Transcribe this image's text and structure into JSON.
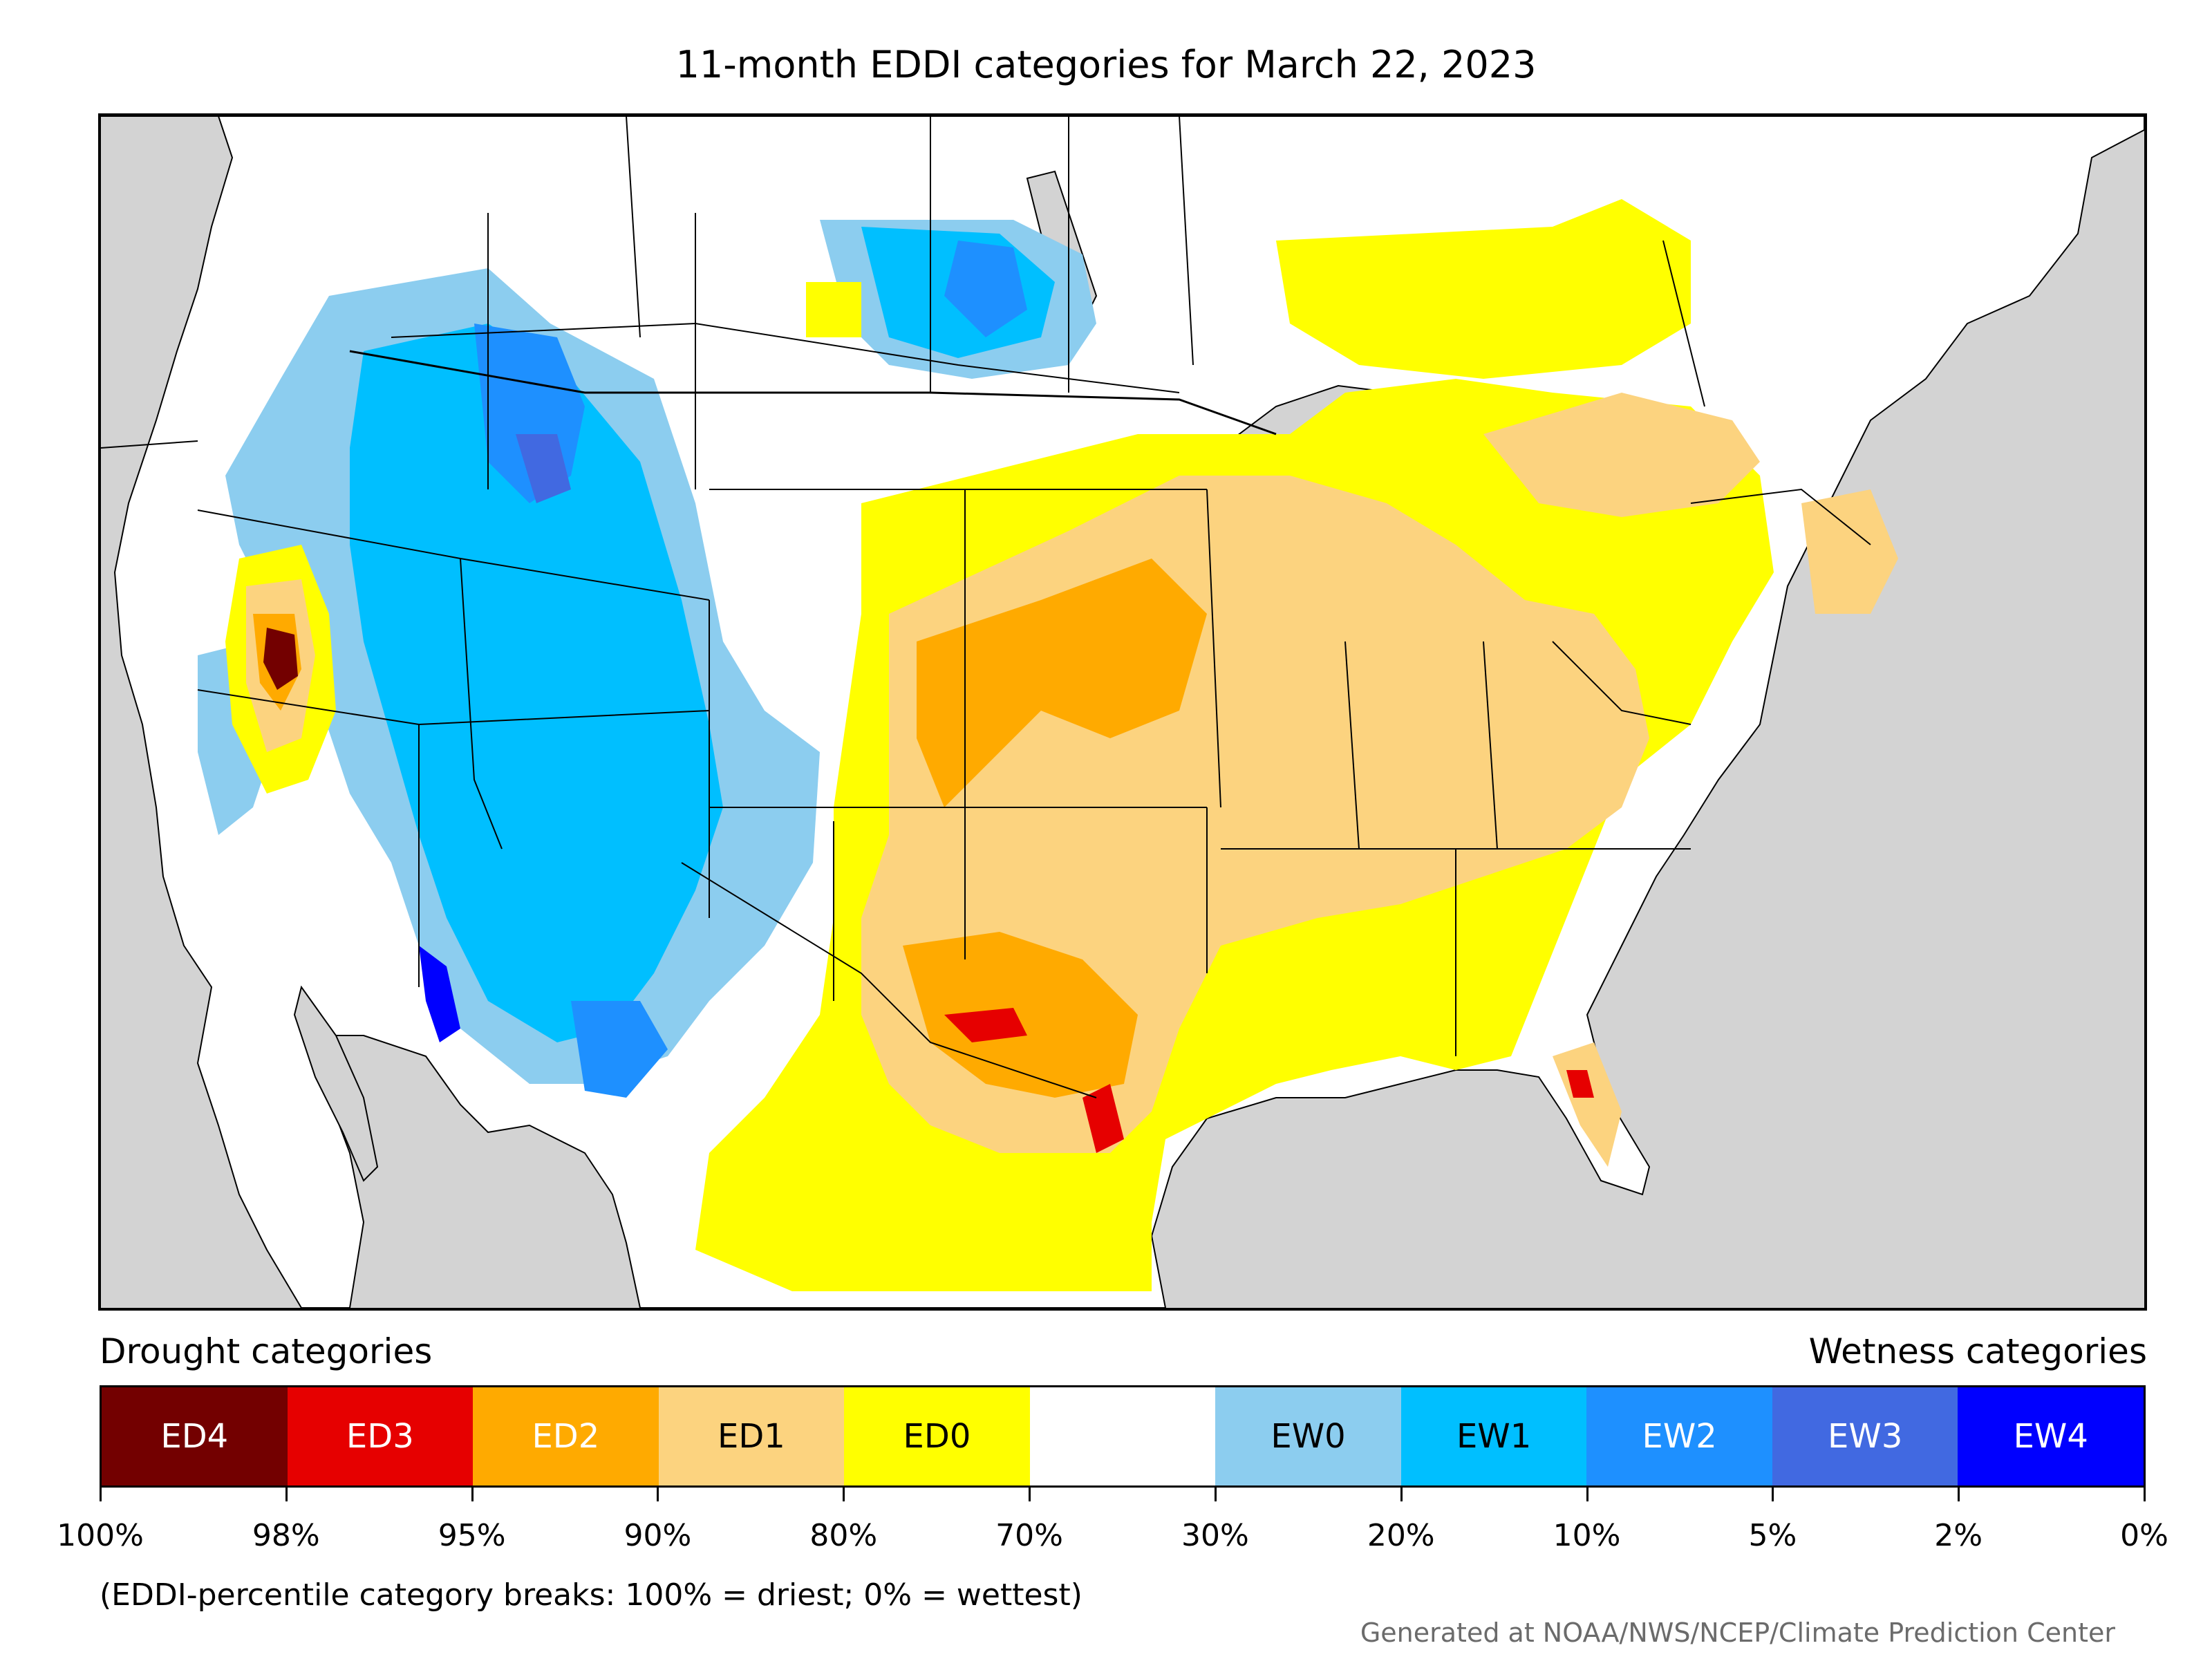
{
  "title": "11-month EDDI categories for March 22, 2023",
  "legend": {
    "drought_label": "Drought categories",
    "wetness_label": "Wetness categories",
    "categories": [
      {
        "label": "ED4",
        "color": "#730000",
        "text_color": "#ffffff"
      },
      {
        "label": "ED3",
        "color": "#e60000",
        "text_color": "#ffffff"
      },
      {
        "label": "ED2",
        "color": "#ffaa00",
        "text_color": "#ffffff"
      },
      {
        "label": "ED1",
        "color": "#fcd37f",
        "text_color": "#000000"
      },
      {
        "label": "ED0",
        "color": "#ffff00",
        "text_color": "#000000"
      },
      {
        "label": "",
        "color": "#ffffff",
        "text_color": "#000000"
      },
      {
        "label": "EW0",
        "color": "#8ccdef",
        "text_color": "#000000"
      },
      {
        "label": "EW1",
        "color": "#00bfff",
        "text_color": "#000000"
      },
      {
        "label": "EW2",
        "color": "#1e90ff",
        "text_color": "#ffffff"
      },
      {
        "label": "EW3",
        "color": "#4169e1",
        "text_color": "#ffffff"
      },
      {
        "label": "EW4",
        "color": "#0000ff",
        "text_color": "#ffffff"
      }
    ],
    "breaks": [
      "100%",
      "98%",
      "95%",
      "90%",
      "80%",
      "70%",
      "30%",
      "20%",
      "10%",
      "5%",
      "2%",
      "0%"
    ]
  },
  "footnote": "(EDDI-percentile category breaks: 100% = driest; 0% = wettest)",
  "credit": "Generated at NOAA/NWS/NCEP/Climate Prediction Center",
  "map_colors": {
    "ocean": "#d3d3d3",
    "land": "#ffffff",
    "border": "#000000"
  }
}
